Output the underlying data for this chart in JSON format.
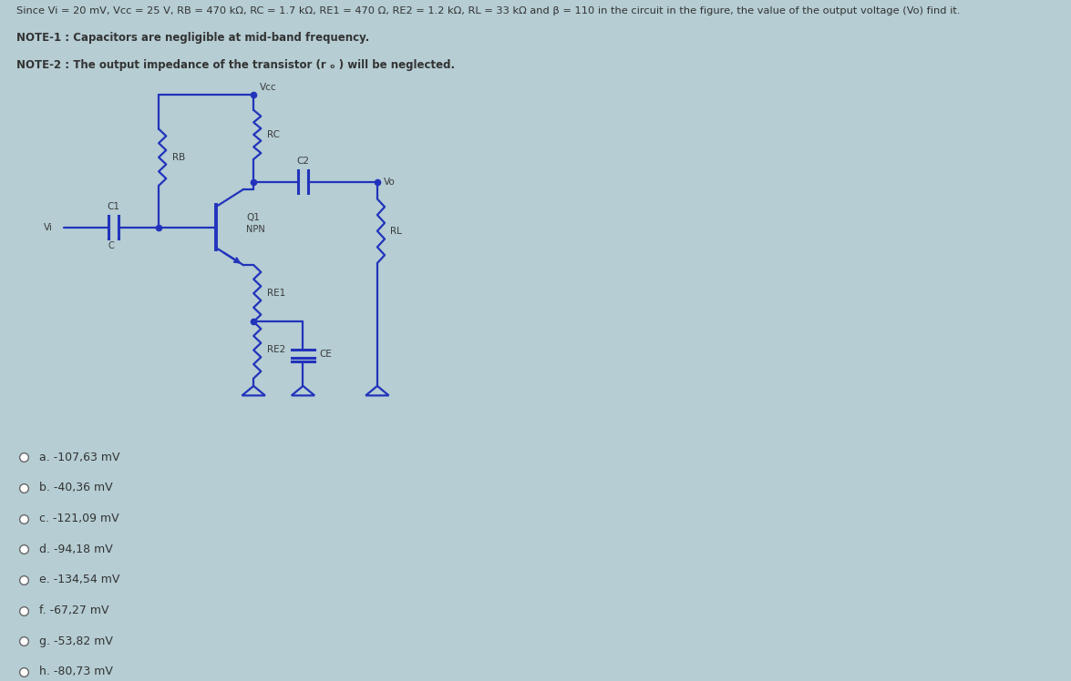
{
  "bg_color": "#b5cdd3",
  "circuit_bg": "#9eb5bc",
  "line_color": "#2233bb",
  "text_color": "#333333",
  "title_text": "Since Vi = 20 mV, Vcc = 25 V, RB = 470 kΩ, RC = 1.7 kΩ, RE1 = 470 Ω, RE2 = 1.2 kΩ, RL = 33 kΩ and β = 110 in the circuit in the figure, the value of the output voltage (Vo) find it.",
  "note1": "NOTE-1 : Capacitors are negligible at mid-band frequency.",
  "note2": "NOTE-2 : The output impedance of the transistor (r ₒ ) will be neglected.",
  "options": [
    "a. -107,63 mV",
    "b. -40,36 mV",
    "c. -121,09 mV",
    "d. -94,18 mV",
    "e. -134,54 mV",
    "f. -67,27 mV",
    "g. -53,82 mV",
    "h. -80,73 mV"
  ]
}
